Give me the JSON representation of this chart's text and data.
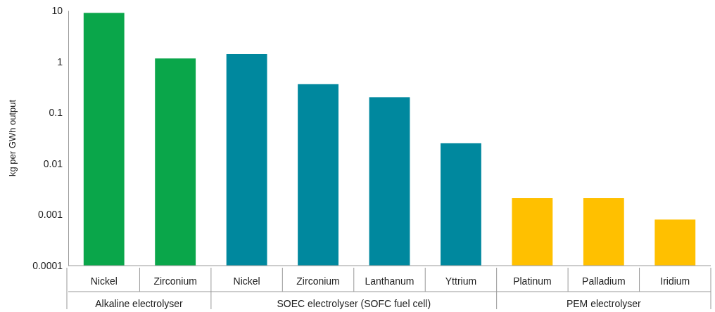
{
  "chart_data": {
    "type": "bar",
    "ylabel": "kg per GWh output",
    "categories": [
      "Nickel",
      "Zirconium",
      "Nickel",
      "Zirconium",
      "Lanthanum",
      "Yttrium",
      "Platinum",
      "Palladium",
      "Iridium"
    ],
    "values": [
      9,
      1.15,
      1.4,
      0.36,
      0.2,
      0.025,
      0.0021,
      0.0021,
      0.0008
    ],
    "colors": [
      "#0aa64a",
      "#0aa64a",
      "#00889e",
      "#00889e",
      "#00889e",
      "#00889e",
      "#ffc000",
      "#ffc000",
      "#ffc000"
    ],
    "annotations": [
      "Alkaline electrolyser",
      "SOEC electrolyser (SOFC fuel cell)",
      "PEM electrolyser"
    ],
    "log": "y",
    "ylim": [
      0.0001,
      10
    ],
    "yticks": [
      10,
      1,
      0.1,
      0.01,
      0.001,
      0.0001
    ],
    "grid": false,
    "legend": false
  }
}
